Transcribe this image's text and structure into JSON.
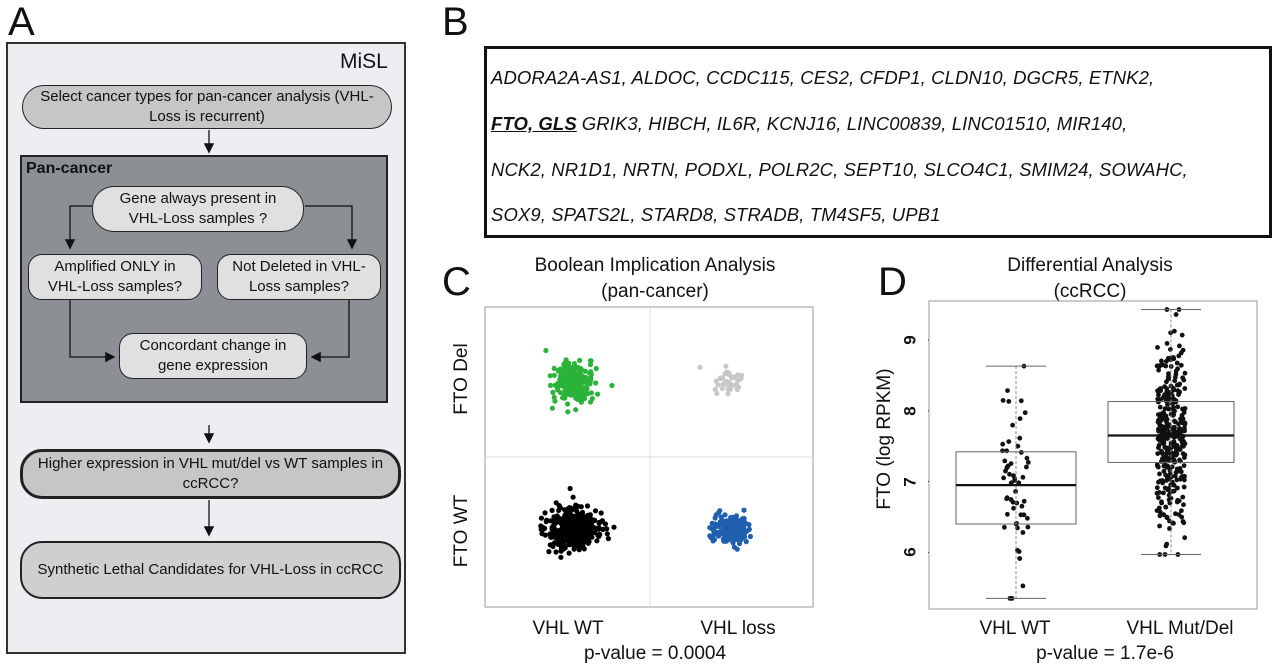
{
  "panel_labels": {
    "a": "A",
    "b": "B",
    "c": "C",
    "d": "D"
  },
  "panel_a": {
    "title": "MiSL",
    "step1": "Select cancer types for pan-cancer analysis (VHL-Loss is recurrent)",
    "pan_label": "Pan-cancer",
    "step_q": "Gene always present in VHL-Loss samples ?",
    "left": "Amplified ONLY in VHL-Loss samples?",
    "right": "Not Deleted in VHL-Loss samples?",
    "concordant": "Concordant change in gene expression",
    "higher": "Higher expression in VHL mut/del vs WT samples in ccRCC?",
    "final": "Synthetic Lethal Candidates for VHL-Loss in ccRCC"
  },
  "panel_b": {
    "lines": [
      "ADORA2A-AS1, ALDOC, CCDC115, CES2, CFDP1, CLDN10, DGCR5, ETNK2,",
      "GRIK3, HIBCH, IL6R, KCNJ16, LINC00839, LINC01510, MIR140,",
      "NCK2, NR1D1, NRTN, PODXL, POLR2C, SEPT10, SLCO4C1, SMIM24, SOWAHC,",
      "SOX9, SPATS2L, STARD8, STRADB, TM4SF5, UPB1"
    ],
    "highlight": "FTO, GLS"
  },
  "chart_data": [
    {
      "type": "scatter",
      "title": "Boolean Implication Analysis",
      "subtitle": "(pan-cancer)",
      "x_categories": [
        "VHL WT",
        "VHL loss"
      ],
      "y_categories": [
        "FTO WT",
        "FTO Del"
      ],
      "groups": [
        {
          "x": "VHL WT",
          "y": "FTO Del",
          "color": "#2bb33a"
        },
        {
          "x": "VHL loss",
          "y": "FTO Del",
          "color": "#c8c8c8"
        },
        {
          "x": "VHL WT",
          "y": "FTO WT",
          "color": "#000000"
        },
        {
          "x": "VHL loss",
          "y": "FTO WT",
          "color": "#1f5fae"
        }
      ],
      "p_value_text": "p-value = 0.0004"
    },
    {
      "type": "box",
      "title": "Differential Analysis",
      "subtitle": "(ccRCC)",
      "ylabel": "FTO (log RPKM)",
      "y_ticks": [
        6,
        7,
        8,
        9
      ],
      "ylim": [
        5.2,
        9.55
      ],
      "categories": [
        "VHL WT",
        "VHL Mut/Del"
      ],
      "boxes": [
        {
          "name": "VHL WT",
          "min": 5.35,
          "q1": 6.4,
          "median": 6.95,
          "q3": 7.42,
          "max": 8.63
        },
        {
          "name": "VHL Mut/Del",
          "min": 5.97,
          "q1": 7.27,
          "median": 7.65,
          "q3": 8.13,
          "max": 9.43
        }
      ],
      "p_value_text": "p-value = 1.7e-6"
    }
  ]
}
